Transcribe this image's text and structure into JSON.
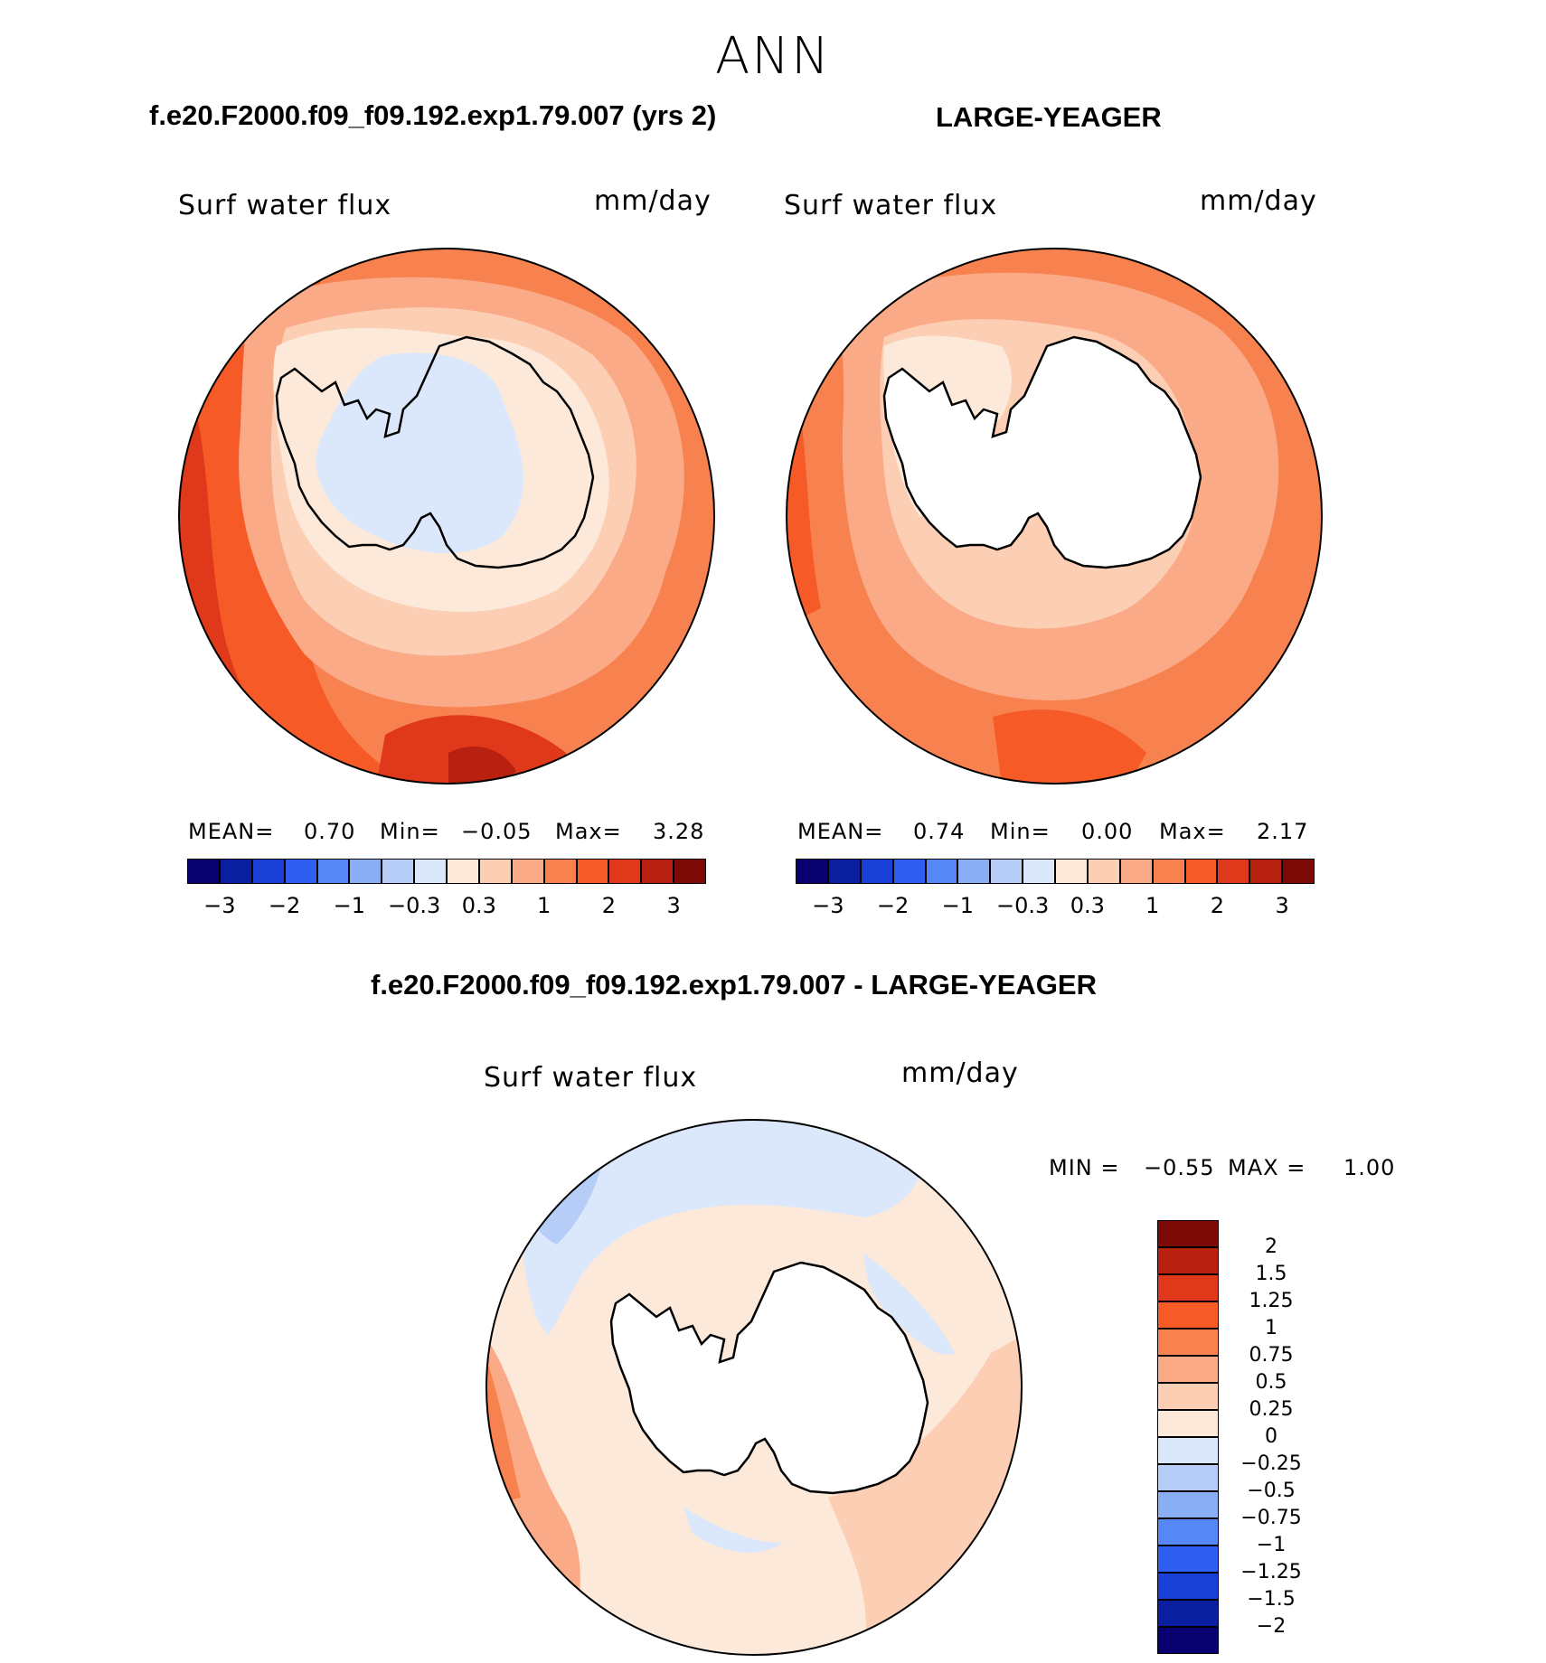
{
  "season": "ANN",
  "panel_top_left": {
    "title": "f.e20.F2000.f09_f09.192.exp1.79.007 (yrs 2)",
    "variable": "Surf water flux",
    "units": "mm/day",
    "mean_label": "MEAN=",
    "mean_value": "0.70",
    "min_label": "Min=",
    "min_value": "−0.05",
    "max_label": "Max=",
    "max_value": "3.28"
  },
  "panel_top_right": {
    "title": "LARGE-YEAGER",
    "variable": "Surf water flux",
    "units": "mm/day",
    "mean_label": "MEAN=",
    "mean_value": "0.74",
    "min_label": "Min=",
    "min_value": "0.00",
    "max_label": "Max=",
    "max_value": "2.17"
  },
  "colorbar_top": {
    "colors": [
      "#08006e",
      "#0a1fa0",
      "#1a3fd6",
      "#2f5ff0",
      "#5587f5",
      "#89aef5",
      "#b6cdf7",
      "#dbe8fb",
      "#fde9da",
      "#fcceb4",
      "#fbaa87",
      "#f8824f",
      "#f55a27",
      "#e0381a",
      "#b8200f",
      "#7e0a07"
    ],
    "tick_labels": [
      "−3",
      "−2",
      "−1",
      "−0.3",
      "0.3",
      "1",
      "2",
      "3"
    ]
  },
  "panel_bottom": {
    "title": "f.e20.F2000.f09_f09.192.exp1.79.007 - LARGE-YEAGER",
    "variable": "Surf water flux",
    "units": "mm/day",
    "min_label": "MIN =",
    "min_value": "−0.55",
    "max_label": "MAX =",
    "max_value": "1.00"
  },
  "colorbar_bottom": {
    "colors": [
      "#7e0a07",
      "#b8200f",
      "#e0381a",
      "#f55a27",
      "#f8824f",
      "#fbaa87",
      "#fcceb4",
      "#fde9da",
      "#dbe8fb",
      "#b6cdf7",
      "#89aef5",
      "#5587f5",
      "#2f5ff0",
      "#1a3fd6",
      "#0a1fa0",
      "#08006e"
    ],
    "tick_labels": [
      "2",
      "1.5",
      "1.25",
      "1",
      "0.75",
      "0.5",
      "0.25",
      "0",
      "−0.25",
      "−0.5",
      "−0.75",
      "−1",
      "−1.25",
      "−1.5",
      "−2"
    ]
  },
  "legend_fills": {
    "land": "#ffffff",
    "coast": "#000000"
  }
}
